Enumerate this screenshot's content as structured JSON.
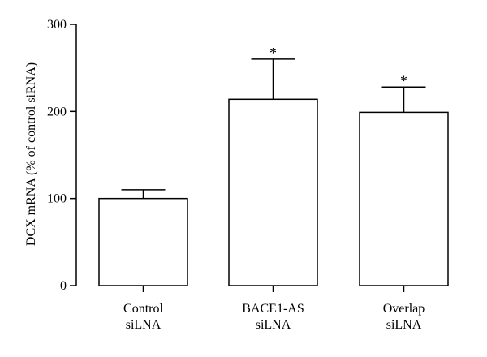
{
  "chart_data": {
    "type": "bar",
    "title": "",
    "xlabel": "",
    "ylabel": "DCX mRNA (% of control siRNA)",
    "ylim": [
      0,
      300
    ],
    "yticks": [
      0,
      100,
      200,
      300
    ],
    "grid": false,
    "categories": [
      [
        "Control",
        "siLNA"
      ],
      [
        "BACE1-AS",
        "siLNA"
      ],
      [
        "Overlap",
        "siLNA"
      ]
    ],
    "values": [
      100,
      214,
      199
    ],
    "error_upper": [
      110,
      260,
      228
    ],
    "significance": [
      "",
      "*",
      "*"
    ],
    "bar_fill": "#ffffff",
    "bar_stroke": "#000000"
  }
}
